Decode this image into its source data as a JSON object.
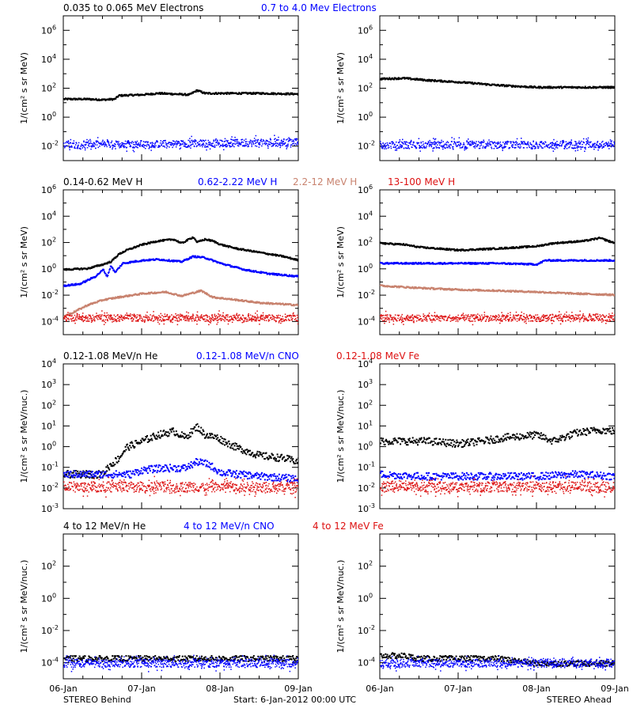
{
  "colors": {
    "black": "#000000",
    "blue": "#0000ff",
    "tan": "#c8826e",
    "red": "#dd1111"
  },
  "footer": {
    "left": "STEREO Behind",
    "center": "Start:  6-Jan-2012 00:00 UTC",
    "right": "STEREO Ahead"
  },
  "chart_data": [
    {
      "type": "scatter",
      "id": "electrons-behind",
      "side": "behind",
      "yscale": "log",
      "ylim_exp": [
        -3,
        7
      ],
      "ytick_exps": [
        -2,
        0,
        2,
        4,
        6
      ],
      "ylabel": "1/(cm² s sr MeV)",
      "xlim_days": [
        0,
        3
      ],
      "xticks": [
        "06-Jan",
        "07-Jan",
        "08-Jan",
        "09-Jan"
      ],
      "legend": [
        {
          "text": "0.035 to 0.065 MeV Electrons",
          "color": "black"
        },
        {
          "text": "0.7 to 4.0 Mev Electrons",
          "color": "blue"
        }
      ],
      "series": [
        {
          "name": "0.035 to 0.065 MeV Electrons",
          "color": "black",
          "style": "line",
          "points": [
            [
              0,
              20
            ],
            [
              0.3,
              20
            ],
            [
              0.5,
              18
            ],
            [
              0.65,
              20
            ],
            [
              0.7,
              35
            ],
            [
              1.0,
              40
            ],
            [
              1.2,
              50
            ],
            [
              1.4,
              45
            ],
            [
              1.6,
              40
            ],
            [
              1.7,
              80
            ],
            [
              1.8,
              50
            ],
            [
              2.0,
              50
            ],
            [
              2.5,
              50
            ],
            [
              3.0,
              45
            ]
          ]
        },
        {
          "name": "0.7 to 4.0 Mev Electrons",
          "color": "blue",
          "style": "noise",
          "points": [
            [
              0,
              0.013
            ],
            [
              1,
              0.015
            ],
            [
              2,
              0.017
            ],
            [
              3,
              0.02
            ]
          ]
        }
      ]
    },
    {
      "type": "scatter",
      "id": "electrons-ahead",
      "side": "ahead",
      "yscale": "log",
      "ylim_exp": [
        -3,
        7
      ],
      "ytick_exps": [
        -2,
        0,
        2,
        4,
        6
      ],
      "ylabel": "1/(cm² s sr MeV)",
      "xlim_days": [
        0,
        3
      ],
      "xticks": [
        "06-Jan",
        "07-Jan",
        "08-Jan",
        "09-Jan"
      ],
      "legend": [],
      "series": [
        {
          "color": "black",
          "style": "line",
          "points": [
            [
              0,
              500
            ],
            [
              0.3,
              550
            ],
            [
              0.6,
              400
            ],
            [
              1.0,
              300
            ],
            [
              1.5,
              180
            ],
            [
              2.0,
              130
            ],
            [
              2.5,
              130
            ],
            [
              3.0,
              130
            ]
          ]
        },
        {
          "color": "blue",
          "style": "noise",
          "points": [
            [
              0,
              0.013
            ],
            [
              1,
              0.013
            ],
            [
              2,
              0.013
            ],
            [
              3,
              0.014
            ]
          ]
        }
      ]
    },
    {
      "type": "scatter",
      "id": "protons-behind",
      "side": "behind",
      "yscale": "log",
      "ylim_exp": [
        -5,
        6
      ],
      "ytick_exps": [
        -4,
        -2,
        0,
        2,
        4,
        6
      ],
      "ylabel": "1/(cm² s sr MeV)",
      "xlim_days": [
        0,
        3
      ],
      "xticks": [
        "06-Jan",
        "07-Jan",
        "08-Jan",
        "09-Jan"
      ],
      "legend": [
        {
          "text": "0.14-0.62 MeV H",
          "color": "black"
        },
        {
          "text": "0.62-2.22 MeV H",
          "color": "blue"
        },
        {
          "text": "2.2-12 MeV H",
          "color": "tan"
        },
        {
          "text": "13-100 MeV H",
          "color": "red"
        }
      ],
      "series": [
        {
          "name": "0.14-0.62 MeV H",
          "color": "black",
          "style": "line",
          "points": [
            [
              0,
              1
            ],
            [
              0.3,
              1.2
            ],
            [
              0.5,
              2.5
            ],
            [
              0.6,
              4
            ],
            [
              0.7,
              15
            ],
            [
              0.8,
              30
            ],
            [
              1.0,
              80
            ],
            [
              1.2,
              150
            ],
            [
              1.4,
              200
            ],
            [
              1.5,
              100
            ],
            [
              1.65,
              300
            ],
            [
              1.7,
              120
            ],
            [
              1.8,
              200
            ],
            [
              1.9,
              150
            ],
            [
              2.0,
              80
            ],
            [
              2.2,
              40
            ],
            [
              2.5,
              20
            ],
            [
              2.8,
              10
            ],
            [
              3.0,
              5
            ]
          ]
        },
        {
          "name": "0.62-2.22 MeV H",
          "color": "blue",
          "style": "line",
          "points": [
            [
              0,
              0.06
            ],
            [
              0.2,
              0.08
            ],
            [
              0.4,
              0.3
            ],
            [
              0.5,
              1
            ],
            [
              0.55,
              0.3
            ],
            [
              0.6,
              2
            ],
            [
              0.65,
              0.6
            ],
            [
              0.75,
              3
            ],
            [
              1.0,
              5
            ],
            [
              1.2,
              6
            ],
            [
              1.5,
              4
            ],
            [
              1.65,
              10
            ],
            [
              1.8,
              8
            ],
            [
              2.0,
              3
            ],
            [
              2.3,
              1
            ],
            [
              2.6,
              0.5
            ],
            [
              3.0,
              0.3
            ]
          ]
        },
        {
          "name": "2.2-12 MeV H",
          "color": "tan",
          "style": "line",
          "points": [
            [
              0,
              0.0003
            ],
            [
              0.1,
              0.0005
            ],
            [
              0.3,
              0.002
            ],
            [
              0.5,
              0.005
            ],
            [
              0.7,
              0.008
            ],
            [
              1.0,
              0.015
            ],
            [
              1.3,
              0.02
            ],
            [
              1.5,
              0.01
            ],
            [
              1.75,
              0.025
            ],
            [
              1.9,
              0.008
            ],
            [
              2.2,
              0.005
            ],
            [
              2.5,
              0.003
            ],
            [
              3.0,
              0.002
            ]
          ]
        },
        {
          "name": "13-100 MeV H",
          "color": "red",
          "style": "noise",
          "points": [
            [
              0,
              0.0002
            ],
            [
              3,
              0.0002
            ]
          ]
        }
      ]
    },
    {
      "type": "scatter",
      "id": "protons-ahead",
      "side": "ahead",
      "yscale": "log",
      "ylim_exp": [
        -5,
        6
      ],
      "ytick_exps": [
        -4,
        -2,
        0,
        2,
        4,
        6
      ],
      "ylabel": "1/(cm² s sr MeV)",
      "xlim_days": [
        0,
        3
      ],
      "xticks": [
        "06-Jan",
        "07-Jan",
        "08-Jan",
        "09-Jan"
      ],
      "legend": [],
      "series": [
        {
          "color": "black",
          "style": "line",
          "points": [
            [
              0,
              100
            ],
            [
              0.3,
              80
            ],
            [
              0.5,
              50
            ],
            [
              1.0,
              30
            ],
            [
              1.5,
              40
            ],
            [
              2.0,
              60
            ],
            [
              2.2,
              100
            ],
            [
              2.6,
              150
            ],
            [
              2.8,
              250
            ],
            [
              3.0,
              100
            ]
          ]
        },
        {
          "color": "blue",
          "style": "line",
          "points": [
            [
              0,
              3
            ],
            [
              0.5,
              3
            ],
            [
              1.0,
              3
            ],
            [
              1.5,
              3
            ],
            [
              2.0,
              2.5
            ],
            [
              2.1,
              5
            ],
            [
              2.5,
              5
            ],
            [
              3.0,
              5
            ]
          ]
        },
        {
          "color": "tan",
          "style": "line",
          "points": [
            [
              0,
              0.06
            ],
            [
              0.5,
              0.04
            ],
            [
              1.0,
              0.03
            ],
            [
              1.5,
              0.025
            ],
            [
              2.0,
              0.02
            ],
            [
              2.5,
              0.015
            ],
            [
              3.0,
              0.012
            ]
          ]
        },
        {
          "color": "red",
          "style": "noise",
          "points": [
            [
              0,
              0.0002
            ],
            [
              3,
              0.0002
            ]
          ]
        }
      ]
    },
    {
      "type": "scatter",
      "id": "heavy-behind",
      "side": "behind",
      "yscale": "log",
      "ylim_exp": [
        -3,
        4
      ],
      "ytick_exps": [
        -3,
        -2,
        -1,
        0,
        1,
        2,
        3,
        4
      ],
      "ylabel": "1/(cm² s sr MeV/nuc.)",
      "xlim_days": [
        0,
        3
      ],
      "xticks": [
        "06-Jan",
        "07-Jan",
        "08-Jan",
        "09-Jan"
      ],
      "legend": [
        {
          "text": "0.12-1.08 MeV/n He",
          "color": "black"
        },
        {
          "text": "0.12-1.08 MeV/n CNO",
          "color": "blue"
        },
        {
          "text": "0.12-1.08 MeV Fe",
          "color": "red"
        }
      ],
      "series": [
        {
          "name": "0.12-1.08 MeV/n He",
          "color": "black",
          "style": "scatter",
          "points": [
            [
              0,
              0.05
            ],
            [
              0.3,
              0.05
            ],
            [
              0.5,
              0.05
            ],
            [
              0.55,
              0.1
            ],
            [
              0.7,
              0.3
            ],
            [
              0.8,
              1
            ],
            [
              1.0,
              2
            ],
            [
              1.2,
              4
            ],
            [
              1.4,
              6
            ],
            [
              1.55,
              3
            ],
            [
              1.7,
              10
            ],
            [
              1.8,
              4
            ],
            [
              1.95,
              3
            ],
            [
              2.2,
              1
            ],
            [
              2.5,
              0.4
            ],
            [
              2.8,
              0.3
            ],
            [
              3.0,
              0.2
            ]
          ]
        },
        {
          "name": "0.12-1.08 MeV/n CNO",
          "color": "blue",
          "style": "scatter",
          "points": [
            [
              0.85,
              0.05
            ],
            [
              1.0,
              0.08
            ],
            [
              1.3,
              0.1
            ],
            [
              1.55,
              0.1
            ],
            [
              1.7,
              0.2
            ],
            [
              1.85,
              0.15
            ],
            [
              2.0,
              0.06
            ],
            [
              2.5,
              0.04
            ],
            [
              3.0,
              0.03
            ]
          ]
        },
        {
          "name": "0.12-1.08 MeV Fe",
          "color": "red",
          "style": "noise",
          "points": [
            [
              0,
              0.012
            ],
            [
              3,
              0.012
            ]
          ]
        }
      ]
    },
    {
      "type": "scatter",
      "id": "heavy-ahead",
      "side": "ahead",
      "yscale": "log",
      "ylim_exp": [
        -3,
        4
      ],
      "ytick_exps": [
        -3,
        -2,
        -1,
        0,
        1,
        2,
        3,
        4
      ],
      "ylabel": "1/(cm² s sr MeV/nuc.)",
      "xlim_days": [
        0,
        3
      ],
      "xticks": [
        "06-Jan",
        "07-Jan",
        "08-Jan",
        "09-Jan"
      ],
      "legend": [],
      "series": [
        {
          "color": "black",
          "style": "scatter",
          "points": [
            [
              0,
              2
            ],
            [
              0.3,
              2
            ],
            [
              0.6,
              2
            ],
            [
              1.0,
              1.5
            ],
            [
              1.3,
              2
            ],
            [
              1.6,
              3
            ],
            [
              2.0,
              4
            ],
            [
              2.2,
              2
            ],
            [
              2.5,
              5
            ],
            [
              2.8,
              7
            ],
            [
              3.0,
              6
            ]
          ]
        },
        {
          "color": "blue",
          "style": "scatter",
          "points": [
            [
              0,
              0.05
            ],
            [
              0.5,
              0.04
            ],
            [
              1.0,
              0.04
            ],
            [
              1.5,
              0.04
            ],
            [
              2.0,
              0.04
            ],
            [
              2.5,
              0.05
            ],
            [
              3.0,
              0.04
            ]
          ]
        },
        {
          "color": "red",
          "style": "noise",
          "points": [
            [
              0,
              0.012
            ],
            [
              3,
              0.012
            ]
          ]
        }
      ]
    },
    {
      "type": "scatter",
      "id": "high-behind",
      "side": "behind",
      "yscale": "log",
      "ylim_exp": [
        -5,
        4
      ],
      "ytick_exps": [
        -4,
        -2,
        0,
        2
      ],
      "ylabel": "1/(cm² s sr MeV/nuc.)",
      "xlim_days": [
        0,
        3
      ],
      "xticks": [
        "06-Jan",
        "07-Jan",
        "08-Jan",
        "09-Jan"
      ],
      "legend": [
        {
          "text": "4 to 12 MeV/n He",
          "color": "black"
        },
        {
          "text": "4 to 12 MeV/n CNO",
          "color": "blue"
        },
        {
          "text": "4 to 12 MeV Fe",
          "color": "red"
        }
      ],
      "series": [
        {
          "name": "4 to 12 MeV/n He",
          "color": "black",
          "style": "scatter",
          "points": [
            [
              0.1,
              0.0002
            ],
            [
              0.3,
              0.0002
            ],
            [
              0.6,
              0.0002
            ],
            [
              1.5,
              0.0002
            ],
            [
              2.3,
              0.0002
            ],
            [
              2.6,
              0.0002
            ]
          ]
        },
        {
          "name": "4 to 12 MeV/n CNO",
          "color": "blue",
          "style": "noise",
          "points": [
            [
              0,
              0.0001
            ],
            [
              3,
              0.0001
            ]
          ]
        }
      ]
    },
    {
      "type": "scatter",
      "id": "high-ahead",
      "side": "ahead",
      "yscale": "log",
      "ylim_exp": [
        -5,
        4
      ],
      "ytick_exps": [
        -4,
        -2,
        0,
        2
      ],
      "ylabel": "1/(cm² s sr MeV/nuc.)",
      "xlim_days": [
        0,
        3
      ],
      "xticks": [
        "06-Jan",
        "07-Jan",
        "08-Jan",
        "09-Jan"
      ],
      "legend": [],
      "series": [
        {
          "color": "black",
          "style": "scatter",
          "points": [
            [
              0.1,
              0.0003
            ],
            [
              0.3,
              0.0003
            ],
            [
              0.5,
              0.0002
            ],
            [
              0.8,
              0.0002
            ],
            [
              1.2,
              0.0002
            ],
            [
              1.5,
              0.0002
            ],
            [
              2.0,
              0.0001
            ],
            [
              2.5,
              0.0001
            ],
            [
              2.8,
              0.0001
            ]
          ]
        },
        {
          "color": "blue",
          "style": "noise",
          "points": [
            [
              0,
              0.0001
            ],
            [
              3,
              0.0001
            ]
          ]
        }
      ]
    }
  ]
}
